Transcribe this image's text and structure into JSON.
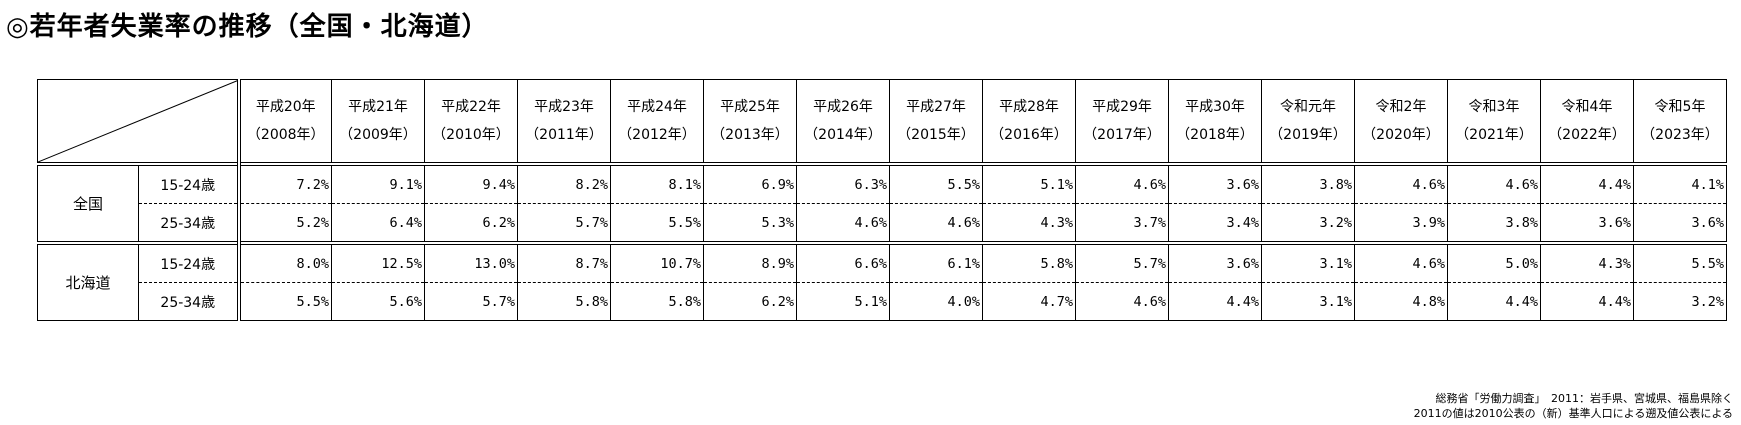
{
  "title": "◎若年者失業率の推移（全国・北海道）",
  "years": [
    {
      "era": "平成20年",
      "ad": "（2008年）"
    },
    {
      "era": "平成21年",
      "ad": "（2009年）"
    },
    {
      "era": "平成22年",
      "ad": "（2010年）"
    },
    {
      "era": "平成23年",
      "ad": "（2011年）"
    },
    {
      "era": "平成24年",
      "ad": "（2012年）"
    },
    {
      "era": "平成25年",
      "ad": "（2013年）"
    },
    {
      "era": "平成26年",
      "ad": "（2014年）"
    },
    {
      "era": "平成27年",
      "ad": "（2015年）"
    },
    {
      "era": "平成28年",
      "ad": "（2016年）"
    },
    {
      "era": "平成29年",
      "ad": "（2017年）"
    },
    {
      "era": "平成30年",
      "ad": "（2018年）"
    },
    {
      "era": "令和元年",
      "ad": "（2019年）"
    },
    {
      "era": "令和2年",
      "ad": "（2020年）"
    },
    {
      "era": "令和3年",
      "ad": "（2021年）"
    },
    {
      "era": "令和4年",
      "ad": "（2022年）"
    },
    {
      "era": "令和5年",
      "ad": "（2023年）"
    }
  ],
  "groups": [
    {
      "name": "全国",
      "rows": [
        {
          "age": "15-24歳",
          "values": [
            "7.2%",
            "9.1%",
            "9.4%",
            "8.2%",
            "8.1%",
            "6.9%",
            "6.3%",
            "5.5%",
            "5.1%",
            "4.6%",
            "3.6%",
            "3.8%",
            "4.6%",
            "4.6%",
            "4.4%",
            "4.1%"
          ]
        },
        {
          "age": "25-34歳",
          "values": [
            "5.2%",
            "6.4%",
            "6.2%",
            "5.7%",
            "5.5%",
            "5.3%",
            "4.6%",
            "4.6%",
            "4.3%",
            "3.7%",
            "3.4%",
            "3.2%",
            "3.9%",
            "3.8%",
            "3.6%",
            "3.6%"
          ]
        }
      ]
    },
    {
      "name": "北海道",
      "rows": [
        {
          "age": "15-24歳",
          "values": [
            "8.0%",
            "12.5%",
            "13.0%",
            "8.7%",
            "10.7%",
            "8.9%",
            "6.6%",
            "6.1%",
            "5.8%",
            "5.7%",
            "3.6%",
            "3.1%",
            "4.6%",
            "5.0%",
            "4.3%",
            "5.5%"
          ]
        },
        {
          "age": "25-34歳",
          "values": [
            "5.5%",
            "5.6%",
            "5.7%",
            "5.8%",
            "5.8%",
            "6.2%",
            "5.1%",
            "4.0%",
            "4.7%",
            "4.6%",
            "4.4%",
            "3.1%",
            "4.8%",
            "4.4%",
            "4.4%",
            "3.2%"
          ]
        }
      ]
    }
  ],
  "source": {
    "line1": "総務省「労働力調査」　2011：岩手県、宮城県、福島県除く",
    "line2": "2011の値は2010公表の（新）基準人口による遡及値公表による"
  }
}
